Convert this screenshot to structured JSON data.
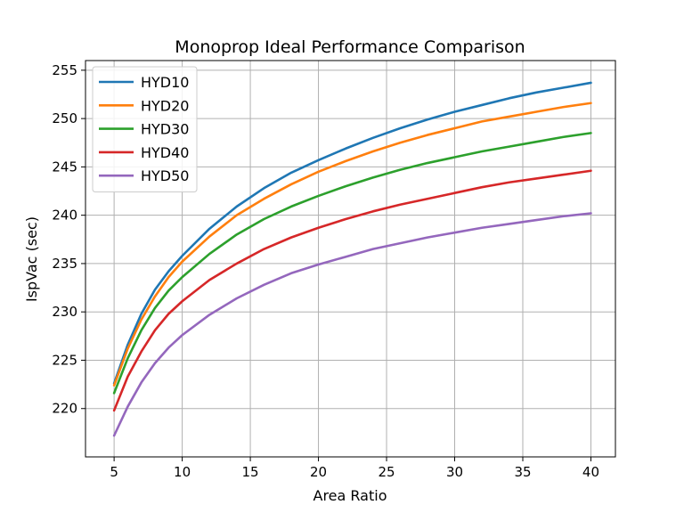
{
  "chart_data": {
    "type": "line",
    "title": "Monoprop Ideal Performance Comparison",
    "xlabel": "Area Ratio",
    "ylabel": "IspVac (sec)",
    "xlim": [
      2.9,
      41.8
    ],
    "ylim": [
      215.0,
      256.0
    ],
    "xticks": [
      5,
      10,
      15,
      20,
      25,
      30,
      35,
      40
    ],
    "yticks": [
      220,
      225,
      230,
      235,
      240,
      245,
      250,
      255
    ],
    "grid": true,
    "legend_position": "upper-left",
    "x": [
      5,
      6,
      7,
      8,
      9,
      10,
      12,
      14,
      16,
      18,
      20,
      22,
      24,
      26,
      28,
      30,
      32,
      34,
      36,
      38,
      40
    ],
    "series": [
      {
        "name": "HYD10",
        "color": "#1f77b4",
        "values": [
          222.6,
          226.6,
          229.8,
          232.3,
          234.2,
          235.8,
          238.6,
          240.9,
          242.8,
          244.4,
          245.7,
          246.9,
          248.0,
          249.0,
          249.9,
          250.7,
          251.4,
          252.1,
          252.7,
          253.2,
          253.7
        ]
      },
      {
        "name": "HYD20",
        "color": "#ff7f0e",
        "values": [
          222.4,
          226.2,
          229.2,
          231.6,
          233.6,
          235.2,
          237.8,
          240.0,
          241.7,
          243.2,
          244.5,
          245.6,
          246.6,
          247.5,
          248.3,
          249.0,
          249.7,
          250.2,
          250.7,
          251.2,
          251.6
        ]
      },
      {
        "name": "HYD30",
        "color": "#2ca02c",
        "values": [
          221.6,
          225.2,
          228.1,
          230.4,
          232.2,
          233.6,
          236.0,
          238.0,
          239.6,
          240.9,
          242.0,
          243.0,
          243.9,
          244.7,
          245.4,
          246.0,
          246.6,
          247.1,
          247.6,
          248.1,
          248.5
        ]
      },
      {
        "name": "HYD40",
        "color": "#d62728",
        "values": [
          219.8,
          223.3,
          225.9,
          228.1,
          229.8,
          231.1,
          233.3,
          235.0,
          236.5,
          237.7,
          238.7,
          239.6,
          240.4,
          241.1,
          241.7,
          242.3,
          242.9,
          243.4,
          243.8,
          244.2,
          244.6
        ]
      },
      {
        "name": "HYD50",
        "color": "#9467bd",
        "values": [
          217.2,
          220.2,
          222.7,
          224.7,
          226.3,
          227.6,
          229.7,
          231.4,
          232.8,
          234.0,
          234.9,
          235.7,
          236.5,
          237.1,
          237.7,
          238.2,
          238.7,
          239.1,
          239.5,
          239.9,
          240.2
        ]
      }
    ]
  }
}
